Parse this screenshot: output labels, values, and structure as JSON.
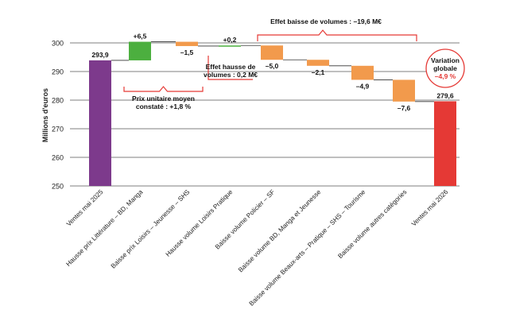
{
  "chart_data": {
    "type": "bar",
    "subtype": "waterfall",
    "title": "",
    "xlabel": "",
    "ylabel": "Millions d'euros",
    "ylim": [
      250,
      300
    ],
    "yticks": [
      "250",
      "260",
      "270",
      "280",
      "290",
      "300"
    ],
    "grid": true,
    "legend": "none",
    "categories": [
      "Ventes mai 2025",
      "Hausse prix Littérature – BD, Manga",
      "Baisse prix Loisirs – Jeunesse – SHS",
      "Hausse volume Loisirs Pratique",
      "Baisse volume Policier – SF",
      "Baisse volume BD, Manga et Jeunesse",
      "Baisse volume Beaux-arts – Pratique – SHS – Tourisme",
      "Baisse volume autres catégories",
      "Ventes mai 2026"
    ],
    "bars": [
      {
        "kind": "total",
        "start": 250,
        "end": 293.9,
        "label": "293,9",
        "color": "#7d3a8c"
      },
      {
        "kind": "delta",
        "start": 293.9,
        "end": 300.4,
        "label": "+6,5",
        "color": "#4caf3f"
      },
      {
        "kind": "delta",
        "start": 300.4,
        "end": 298.9,
        "label": "–1,5",
        "color": "#f29a4c"
      },
      {
        "kind": "delta",
        "start": 298.9,
        "end": 299.1,
        "label": "+0,2",
        "color": "#4caf3f"
      },
      {
        "kind": "delta",
        "start": 299.1,
        "end": 294.1,
        "label": "–5,0",
        "color": "#f29a4c"
      },
      {
        "kind": "delta",
        "start": 294.1,
        "end": 292.0,
        "label": "–2,1",
        "color": "#f29a4c"
      },
      {
        "kind": "delta",
        "start": 292.0,
        "end": 287.1,
        "label": "–4,9",
        "color": "#f29a4c"
      },
      {
        "kind": "delta",
        "start": 287.1,
        "end": 279.5,
        "label": "–7,6",
        "color": "#f29a4c"
      },
      {
        "kind": "total",
        "start": 250,
        "end": 279.6,
        "label": "279,6",
        "color": "#e53935"
      }
    ],
    "annotations": {
      "price": {
        "lines": [
          "Prix unitaire moyen",
          "constaté : +1,8 %"
        ],
        "from": 1,
        "to": 2
      },
      "volume_up": {
        "lines": [
          "Effet hausse de",
          "volumes : 0,2 M€"
        ],
        "bar": 3
      },
      "volume_down": {
        "text": "Effet baisse de volumes : –19,6 M€",
        "from": 4,
        "to": 7
      },
      "global": {
        "line1": "Variation",
        "line2": "globale",
        "value": "–4,9 %"
      }
    },
    "colors": {
      "grid": "#555555",
      "connector": "#333333",
      "bracket": "#e53935",
      "global_value": "#e53935"
    }
  }
}
